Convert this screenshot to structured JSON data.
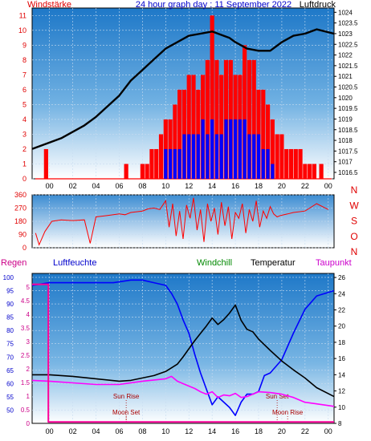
{
  "page": {
    "title": "24 hour graph day : 11 September 2022",
    "colors": {
      "background": "#ffffff",
      "frame": "#000000",
      "grid": "#c8dcf0"
    }
  },
  "chart_data": [
    {
      "id": "wind-pressure",
      "type": "bar",
      "title": "24 hour graph day : 11 September 2022",
      "x_ticks": [
        "00",
        "02",
        "04",
        "06",
        "08",
        "10",
        "12",
        "14",
        "16",
        "18",
        "20",
        "22",
        "00"
      ],
      "x_range": [
        -1.5,
        24.5
      ],
      "left_axis": {
        "label": "Windstärke",
        "ticks": [
          "0",
          "1",
          "2",
          "3",
          "4",
          "5",
          "6",
          "7",
          "8",
          "9",
          "10",
          "11"
        ],
        "range": [
          0,
          11.5
        ],
        "color": "#e00000"
      },
      "right_axis": {
        "label": "Luftdruck",
        "ticks": [
          "1016.5",
          "1017",
          "1017.5",
          "1018",
          "1018.5",
          "1019",
          "1019.5",
          "1020",
          "1020.5",
          "1021",
          "1021.5",
          "1022",
          "1022.5",
          "1023",
          "1023.5",
          "1024"
        ],
        "range": [
          1016.2,
          1024.2
        ],
        "color": "#000000"
      },
      "series": [
        {
          "role": "gust",
          "axis": "left",
          "color": "#ff0000",
          "x": [
            -0.3,
            4.5,
            6.6,
            8.0,
            8.4,
            8.8,
            9.2,
            9.6,
            10.0,
            10.4,
            10.8,
            11.2,
            11.6,
            12.0,
            12.4,
            12.8,
            13.2,
            13.6,
            14.0,
            14.4,
            14.8,
            15.2,
            15.6,
            16.0,
            16.4,
            16.8,
            17.2,
            17.6,
            18.0,
            18.4,
            18.8,
            19.2,
            19.6,
            20.0,
            20.4,
            20.8,
            21.2,
            21.6,
            22.0,
            22.4,
            22.8,
            23.4
          ],
          "values": [
            2,
            0,
            1,
            1,
            1,
            2,
            2,
            3,
            4,
            4,
            5,
            6,
            6,
            7,
            7,
            6,
            7,
            8,
            11,
            8,
            7,
            8,
            8,
            7,
            7,
            9,
            8,
            8,
            6,
            6,
            5,
            4,
            3,
            3,
            2,
            2,
            2,
            2,
            1,
            1,
            1,
            1
          ]
        },
        {
          "role": "mean",
          "axis": "left",
          "color": "#0000ff",
          "x": [
            10.0,
            10.4,
            10.8,
            11.2,
            11.6,
            12.0,
            12.4,
            12.8,
            13.2,
            13.6,
            14.0,
            14.4,
            14.8,
            15.2,
            15.6,
            16.0,
            16.4,
            16.8,
            17.2,
            17.6,
            18.0,
            18.4,
            18.8,
            19.2
          ],
          "values": [
            2,
            2,
            2,
            2,
            3,
            3,
            3,
            3,
            4,
            3,
            4,
            3,
            3,
            4,
            4,
            4,
            4,
            4,
            3,
            3,
            3,
            2,
            2,
            1
          ]
        },
        {
          "name": "Luftdruck",
          "axis": "right",
          "color": "#000000",
          "x": [
            -1.5,
            0,
            1,
            2,
            3,
            4,
            5,
            6,
            7,
            8,
            9,
            10,
            11,
            12,
            13,
            14,
            15,
            15.5,
            16,
            17,
            18,
            19,
            20,
            21,
            22,
            23,
            24.5
          ],
          "values": [
            1017.6,
            1017.9,
            1018.1,
            1018.4,
            1018.7,
            1019.1,
            1019.6,
            1020.1,
            1020.8,
            1021.3,
            1021.8,
            1022.3,
            1022.6,
            1022.9,
            1023.0,
            1023.1,
            1022.9,
            1022.8,
            1022.6,
            1022.3,
            1022.2,
            1022.2,
            1022.6,
            1022.9,
            1023.0,
            1023.2,
            1023.0
          ]
        }
      ]
    },
    {
      "id": "wind-direction",
      "type": "line",
      "x_range": [
        -1.5,
        24.5
      ],
      "left_axis": {
        "ticks": [
          "0",
          "90",
          "180",
          "270",
          "360"
        ],
        "range": [
          0,
          360
        ],
        "color": "#e00000"
      },
      "right_axis": {
        "ticks": [
          "N",
          "W",
          "S",
          "O",
          "N"
        ],
        "color": "#e00000"
      },
      "series": [
        {
          "color": "#ff0000",
          "x": [
            -1.2,
            -0.9,
            -0.4,
            0.2,
            1,
            2,
            3,
            3.5,
            4,
            5,
            6,
            6.5,
            7,
            8,
            8.5,
            9,
            9.5,
            10,
            10.3,
            10.6,
            10.9,
            11.2,
            11.5,
            11.8,
            12.1,
            12.4,
            12.7,
            13,
            13.3,
            13.6,
            13.9,
            14.2,
            14.5,
            14.8,
            15.1,
            15.4,
            15.7,
            16,
            16.3,
            16.6,
            16.9,
            17.2,
            17.5,
            17.8,
            18.1,
            18.4,
            18.7,
            19,
            19.3,
            19.6,
            19.9,
            20.5,
            21,
            22,
            23,
            24
          ],
          "values": [
            100,
            20,
            110,
            180,
            190,
            185,
            190,
            30,
            210,
            220,
            230,
            225,
            240,
            250,
            265,
            270,
            260,
            320,
            140,
            300,
            80,
            250,
            60,
            290,
            200,
            340,
            120,
            260,
            40,
            300,
            180,
            270,
            90,
            310,
            150,
            280,
            60,
            240,
            200,
            300,
            100,
            260,
            180,
            320,
            140,
            250,
            200,
            280,
            230,
            210,
            220,
            230,
            240,
            250,
            300,
            260
          ]
        }
      ]
    },
    {
      "id": "humidity-temperature",
      "type": "line",
      "x_ticks": [
        "00",
        "02",
        "04",
        "06",
        "08",
        "10",
        "12",
        "14",
        "16",
        "18",
        "20",
        "22",
        "00"
      ],
      "x_range": [
        -1.5,
        24.5
      ],
      "labels": {
        "rain": "Regen",
        "humidity": "Luftfeuchte",
        "windchill": "Windchill",
        "temperature": "Temperatur",
        "dewpoint": "Taupunkt"
      },
      "rain_axis": {
        "ticks": [
          "0",
          "0.5",
          "1",
          "1.5",
          "2",
          "2.5",
          "3",
          "3.5",
          "4",
          "4.5",
          "5"
        ],
        "range": [
          0,
          5.5
        ],
        "color": "#cc0088"
      },
      "humidity_axis": {
        "ticks": [
          "50",
          "55",
          "60",
          "65",
          "70",
          "75",
          "80",
          "85",
          "90",
          "95",
          "100"
        ],
        "range": [
          45,
          101.5
        ],
        "color": "#0000cc"
      },
      "temperature_axis": {
        "ticks": [
          "8",
          "10",
          "12",
          "14",
          "16",
          "18",
          "20",
          "22",
          "24",
          "26"
        ],
        "range": [
          8,
          26.5
        ],
        "color": "#000000"
      },
      "annotations": [
        {
          "text": "Sun Rise",
          "x": 6.6,
          "color": "#aa0000"
        },
        {
          "text": "Moon Set",
          "x": 6.6,
          "color": "#aa0000"
        },
        {
          "text": "Sun Set",
          "x": 19.6,
          "color": "#aa0000"
        },
        {
          "text": "Moon Rise",
          "x": 20.5,
          "color": "#aa0000"
        }
      ],
      "series": [
        {
          "name": "Luftfeuchte",
          "axis": "humidity",
          "color": "#0000ff",
          "x": [
            -1.5,
            0,
            2,
            4,
            5.5,
            7,
            8,
            9,
            10,
            10.5,
            11,
            11.5,
            12,
            12.5,
            13,
            13.5,
            14,
            14.5,
            15,
            15.5,
            16,
            16.5,
            17,
            17.5,
            18,
            18.5,
            19,
            20,
            21,
            22,
            23,
            24.5
          ],
          "values": [
            97,
            98,
            98,
            98,
            98,
            99,
            99,
            98,
            97,
            94,
            90,
            84,
            79,
            71,
            64,
            58,
            52,
            55,
            53,
            51,
            48,
            53,
            56,
            56,
            57,
            63,
            64,
            69,
            79,
            88,
            93,
            95
          ]
        },
        {
          "name": "Temperatur",
          "axis": "temperature",
          "color": "#000000",
          "x": [
            -1.5,
            0,
            2,
            4,
            6,
            7,
            8,
            9,
            10,
            11,
            11.5,
            12,
            12.5,
            13,
            13.5,
            14,
            14.5,
            15,
            15.5,
            16,
            16.5,
            17,
            17.5,
            18,
            19,
            20,
            21,
            22,
            23,
            24.5
          ],
          "values": [
            14.0,
            14.0,
            13.8,
            13.5,
            13.2,
            13.3,
            13.6,
            13.9,
            14.4,
            15.3,
            16.2,
            17.2,
            18.2,
            19.1,
            20.0,
            21.0,
            20.2,
            20.8,
            21.6,
            22.6,
            20.7,
            19.6,
            19.3,
            18.4,
            17.0,
            15.7,
            14.6,
            13.6,
            12.4,
            11.3
          ]
        },
        {
          "name": "Taupunkt",
          "axis": "temperature",
          "color": "#ff00ff",
          "x": [
            -1.5,
            0,
            2,
            4,
            6,
            8,
            10,
            10.5,
            11,
            11.5,
            12,
            12.5,
            13,
            13.5,
            14,
            14.5,
            15,
            15.5,
            16,
            16.5,
            17,
            17.5,
            18,
            19,
            20,
            21,
            22,
            23,
            24.5
          ],
          "values": [
            13.3,
            13.2,
            13.0,
            12.8,
            12.8,
            13.2,
            13.5,
            13.8,
            13.2,
            12.9,
            12.6,
            12.3,
            11.9,
            11.6,
            11.9,
            11.2,
            11.5,
            11.4,
            11.7,
            11.2,
            11.3,
            11.6,
            11.9,
            11.8,
            11.6,
            11.2,
            10.6,
            10.4,
            10.1
          ]
        },
        {
          "name": "Windchill",
          "axis": "temperature",
          "color": "#008800",
          "x": [
            -1.5,
            24.5
          ],
          "values": [
            null,
            null
          ]
        },
        {
          "name": "Regen",
          "axis": "rain",
          "color": "#ff0099",
          "x": [
            -1.5,
            -0.1,
            -0.1,
            24.5
          ],
          "values": [
            5.1,
            5.1,
            0.05,
            0.05
          ]
        }
      ]
    }
  ]
}
